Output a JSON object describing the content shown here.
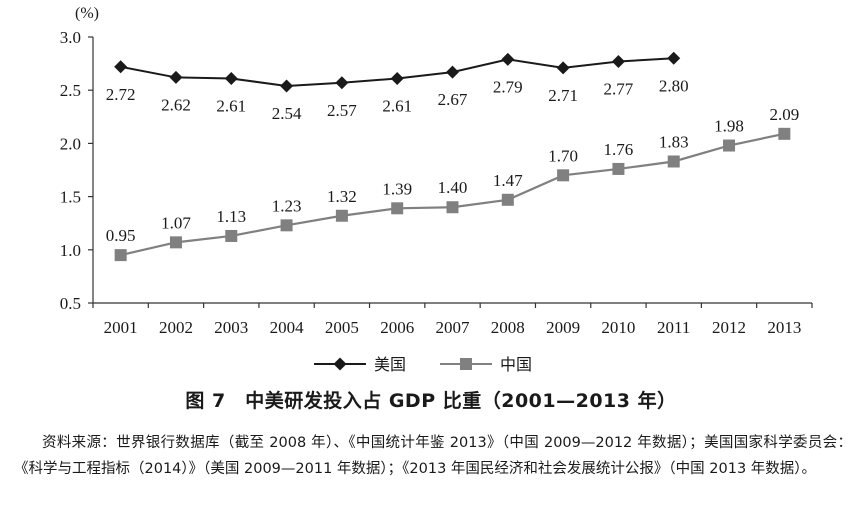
{
  "chart_data": {
    "type": "line",
    "unit_label": "(%)",
    "x": [
      "2001",
      "2002",
      "2003",
      "2004",
      "2005",
      "2006",
      "2007",
      "2008",
      "2009",
      "2010",
      "2011",
      "2012",
      "2013"
    ],
    "y_ticks": [
      "0.5",
      "1.0",
      "1.5",
      "2.0",
      "2.5",
      "3.0"
    ],
    "ylim": [
      0.5,
      3.0
    ],
    "grid": false,
    "legend_position": "bottom",
    "series": [
      {
        "name": "美国",
        "marker": "diamond",
        "color": "#1a1a1a",
        "values": [
          2.72,
          2.62,
          2.61,
          2.54,
          2.57,
          2.61,
          2.67,
          2.79,
          2.71,
          2.77,
          2.8,
          null,
          null
        ],
        "labels": [
          "2.72",
          "2.62",
          "2.61",
          "2.54",
          "2.57",
          "2.61",
          "2.67",
          "2.79",
          "2.71",
          "2.77",
          "2.80",
          "",
          ""
        ]
      },
      {
        "name": "中国",
        "marker": "square",
        "color": "#808080",
        "values": [
          0.95,
          1.07,
          1.13,
          1.23,
          1.32,
          1.39,
          1.4,
          1.47,
          1.7,
          1.76,
          1.83,
          1.98,
          2.09
        ],
        "labels": [
          "0.95",
          "1.07",
          "1.13",
          "1.23",
          "1.32",
          "1.39",
          "1.40",
          "1.47",
          "1.70",
          "1.76",
          "1.83",
          "1.98",
          "2.09"
        ]
      }
    ]
  },
  "figure": {
    "title": "图 7　中美研发投入占 GDP 比重（2001—2013 年）",
    "source": "资料来源：世界银行数据库（截至 2008 年）、《中国统计年鉴 2013》（中国 2009—2012 年数据）；美国国家科学委员会：《科学与工程指标（2014）》（美国 2009—2011 年数据）；《2013 年国民经济和社会发展统计公报》（中国 2013 年数据）。"
  }
}
